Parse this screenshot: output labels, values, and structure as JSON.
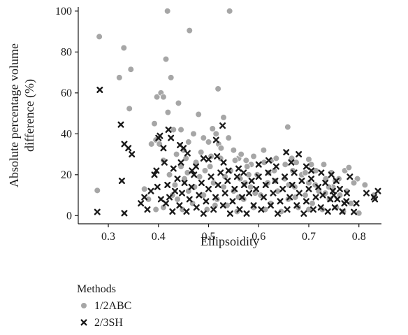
{
  "chart_data": {
    "type": "scatter",
    "xlabel": "Ellipsoidity",
    "ylabel": "Absolute percentage volume difference (%)",
    "ylabel_lines": [
      "Absolute percentage volume",
      "difference (%)"
    ],
    "xlim": [
      0.24,
      0.845
    ],
    "ylim": [
      -4,
      102
    ],
    "x_ticks": [
      0.3,
      0.4,
      0.5,
      0.6,
      0.7,
      0.8
    ],
    "x_tick_labels": [
      "0.3",
      "0.4",
      "0.5",
      "0.6",
      "0.7",
      "0.8"
    ],
    "y_ticks": [
      0,
      20,
      40,
      60,
      80,
      100
    ],
    "y_tick_labels": [
      "0",
      "20",
      "40",
      "60",
      "80",
      "100"
    ],
    "grid": false,
    "legend": {
      "title": "Methods",
      "placement": "bottom-left, below plot",
      "entries": [
        "1/2ABC",
        "2/3SH"
      ]
    },
    "series": [
      {
        "name": "1/2ABC",
        "marker": "circle",
        "color": "#a6a6a6",
        "points": [
          [
            0.282,
            87.5
          ],
          [
            0.331,
            82
          ],
          [
            0.345,
            71.5
          ],
          [
            0.322,
            67.5
          ],
          [
            0.342,
            52.3
          ],
          [
            0.278,
            12.3
          ],
          [
            0.372,
            13
          ],
          [
            0.386,
            35
          ],
          [
            0.395,
            37
          ],
          [
            0.402,
            35
          ],
          [
            0.392,
            45
          ],
          [
            0.397,
            58
          ],
          [
            0.405,
            60
          ],
          [
            0.41,
            58
          ],
          [
            0.415,
            76.5
          ],
          [
            0.418,
            100
          ],
          [
            0.419,
            50.5
          ],
          [
            0.425,
            67.5
          ],
          [
            0.43,
            42
          ],
          [
            0.44,
            55
          ],
          [
            0.462,
            90.5
          ],
          [
            0.445,
            42
          ],
          [
            0.45,
            32
          ],
          [
            0.455,
            28
          ],
          [
            0.46,
            36
          ],
          [
            0.47,
            40
          ],
          [
            0.48,
            49.5
          ],
          [
            0.49,
            38
          ],
          [
            0.5,
            36
          ],
          [
            0.508,
            42.5
          ],
          [
            0.515,
            40
          ],
          [
            0.52,
            35
          ],
          [
            0.519,
            62
          ],
          [
            0.53,
            48
          ],
          [
            0.542,
            100
          ],
          [
            0.54,
            38
          ],
          [
            0.55,
            32
          ],
          [
            0.56,
            28
          ],
          [
            0.575,
            27
          ],
          [
            0.585,
            25
          ],
          [
            0.61,
            32
          ],
          [
            0.625,
            27
          ],
          [
            0.658,
            43.3
          ],
          [
            0.668,
            22
          ],
          [
            0.7,
            27.5
          ],
          [
            0.705,
            25
          ],
          [
            0.73,
            25
          ],
          [
            0.745,
            21
          ],
          [
            0.76,
            18
          ],
          [
            0.772,
            22
          ],
          [
            0.78,
            23.5
          ],
          [
            0.8,
            1.2
          ],
          [
            0.812,
            15
          ],
          [
            0.83,
            10
          ],
          [
            0.797,
            18
          ],
          [
            0.41,
            27
          ],
          [
            0.422,
            20
          ],
          [
            0.433,
            15
          ],
          [
            0.438,
            8
          ],
          [
            0.41,
            4
          ],
          [
            0.395,
            3
          ],
          [
            0.38,
            8
          ],
          [
            0.445,
            24
          ],
          [
            0.452,
            18
          ],
          [
            0.46,
            12
          ],
          [
            0.468,
            6
          ],
          [
            0.475,
            26
          ],
          [
            0.482,
            19
          ],
          [
            0.49,
            10
          ],
          [
            0.497,
            3
          ],
          [
            0.503,
            24
          ],
          [
            0.51,
            16
          ],
          [
            0.517,
            8
          ],
          [
            0.524,
            28
          ],
          [
            0.53,
            14
          ],
          [
            0.537,
            5
          ],
          [
            0.544,
            22
          ],
          [
            0.55,
            12
          ],
          [
            0.557,
            2
          ],
          [
            0.563,
            18
          ],
          [
            0.57,
            8
          ],
          [
            0.577,
            24
          ],
          [
            0.584,
            14
          ],
          [
            0.59,
            4
          ],
          [
            0.597,
            20
          ],
          [
            0.604,
            10
          ],
          [
            0.611,
            26
          ],
          [
            0.618,
            16
          ],
          [
            0.624,
            6
          ],
          [
            0.631,
            22
          ],
          [
            0.638,
            12
          ],
          [
            0.645,
            2
          ],
          [
            0.652,
            18
          ],
          [
            0.659,
            8
          ],
          [
            0.666,
            28
          ],
          [
            0.672,
            14
          ],
          [
            0.679,
            4
          ],
          [
            0.686,
            20
          ],
          [
            0.693,
            10
          ],
          [
            0.7,
            16
          ],
          [
            0.707,
            6
          ],
          [
            0.714,
            22
          ],
          [
            0.72,
            12
          ],
          [
            0.727,
            3
          ],
          [
            0.734,
            18
          ],
          [
            0.741,
            8
          ],
          [
            0.748,
            14
          ],
          [
            0.755,
            4
          ],
          [
            0.762,
            10
          ],
          [
            0.769,
            2
          ],
          [
            0.776,
            12
          ],
          [
            0.784,
            6
          ],
          [
            0.79,
            16
          ],
          [
            0.485,
            31
          ],
          [
            0.505,
            29
          ],
          [
            0.525,
            33
          ],
          [
            0.565,
            30
          ],
          [
            0.59,
            29
          ],
          [
            0.635,
            28
          ],
          [
            0.675,
            26
          ],
          [
            0.458,
            21
          ],
          [
            0.472,
            14
          ],
          [
            0.493,
            22
          ],
          [
            0.513,
            5
          ],
          [
            0.533,
            19
          ],
          [
            0.553,
            27
          ],
          [
            0.573,
            16
          ],
          [
            0.593,
            11
          ],
          [
            0.613,
            3
          ],
          [
            0.633,
            17
          ],
          [
            0.653,
            25
          ],
          [
            0.673,
            9
          ],
          [
            0.693,
            21
          ],
          [
            0.713,
            15
          ],
          [
            0.733,
            11
          ],
          [
            0.753,
            17
          ],
          [
            0.428,
            10
          ],
          [
            0.436,
            30
          ],
          [
            0.448,
            3
          ],
          [
            0.58,
            20
          ],
          [
            0.62,
            21
          ],
          [
            0.66,
            15
          ],
          [
            0.7,
            3
          ],
          [
            0.74,
            14
          ],
          [
            0.56,
            9
          ]
        ]
      },
      {
        "name": "2/3SH",
        "marker": "x",
        "color": "#1a1a1a",
        "points": [
          [
            0.283,
            61.5
          ],
          [
            0.325,
            44.5
          ],
          [
            0.332,
            35
          ],
          [
            0.34,
            33
          ],
          [
            0.347,
            30
          ],
          [
            0.327,
            17
          ],
          [
            0.278,
            1.8
          ],
          [
            0.332,
            1.2
          ],
          [
            0.365,
            6
          ],
          [
            0.372,
            9
          ],
          [
            0.378,
            3
          ],
          [
            0.385,
            12
          ],
          [
            0.392,
            20
          ],
          [
            0.396,
            22
          ],
          [
            0.4,
            38
          ],
          [
            0.403,
            39
          ],
          [
            0.41,
            33
          ],
          [
            0.42,
            42
          ],
          [
            0.425,
            38
          ],
          [
            0.43,
            23
          ],
          [
            0.443,
            34.5
          ],
          [
            0.45,
            33
          ],
          [
            0.458,
            30.5
          ],
          [
            0.467,
            22
          ],
          [
            0.475,
            24
          ],
          [
            0.5,
            27.5
          ],
          [
            0.515,
            37
          ],
          [
            0.517,
            29
          ],
          [
            0.528,
            44
          ],
          [
            0.54,
            22
          ],
          [
            0.57,
            21
          ],
          [
            0.62,
            27
          ],
          [
            0.655,
            31
          ],
          [
            0.68,
            30
          ],
          [
            0.705,
            22
          ],
          [
            0.745,
            20
          ],
          [
            0.75,
            10
          ],
          [
            0.775,
            7
          ],
          [
            0.782,
            19
          ],
          [
            0.79,
            1.8
          ],
          [
            0.795,
            6
          ],
          [
            0.815,
            11
          ],
          [
            0.83,
            9
          ],
          [
            0.838,
            12
          ],
          [
            0.832,
            8
          ],
          [
            0.415,
            6
          ],
          [
            0.418,
            15
          ],
          [
            0.422,
            9
          ],
          [
            0.428,
            2
          ],
          [
            0.433,
            12
          ],
          [
            0.438,
            18
          ],
          [
            0.442,
            5
          ],
          [
            0.447,
            11
          ],
          [
            0.452,
            16
          ],
          [
            0.456,
            2
          ],
          [
            0.462,
            8
          ],
          [
            0.466,
            14
          ],
          [
            0.471,
            20
          ],
          [
            0.476,
            4
          ],
          [
            0.481,
            10
          ],
          [
            0.486,
            16
          ],
          [
            0.49,
            1
          ],
          [
            0.495,
            7
          ],
          [
            0.5,
            13
          ],
          [
            0.505,
            19
          ],
          [
            0.51,
            3
          ],
          [
            0.514,
            9
          ],
          [
            0.519,
            15
          ],
          [
            0.524,
            21
          ],
          [
            0.529,
            5
          ],
          [
            0.533,
            11
          ],
          [
            0.538,
            17
          ],
          [
            0.543,
            1
          ],
          [
            0.548,
            7
          ],
          [
            0.552,
            13
          ],
          [
            0.557,
            19
          ],
          [
            0.562,
            3
          ],
          [
            0.567,
            9
          ],
          [
            0.571,
            15
          ],
          [
            0.576,
            1
          ],
          [
            0.581,
            11
          ],
          [
            0.586,
            17
          ],
          [
            0.59,
            5
          ],
          [
            0.595,
            13
          ],
          [
            0.6,
            19
          ],
          [
            0.605,
            3
          ],
          [
            0.61,
            9
          ],
          [
            0.614,
            15
          ],
          [
            0.619,
            21
          ],
          [
            0.624,
            5
          ],
          [
            0.629,
            11
          ],
          [
            0.633,
            17
          ],
          [
            0.638,
            1
          ],
          [
            0.643,
            7
          ],
          [
            0.648,
            13
          ],
          [
            0.652,
            19
          ],
          [
            0.657,
            3
          ],
          [
            0.662,
            9
          ],
          [
            0.667,
            15
          ],
          [
            0.671,
            21
          ],
          [
            0.676,
            5
          ],
          [
            0.681,
            11
          ],
          [
            0.686,
            17
          ],
          [
            0.69,
            1
          ],
          [
            0.695,
            7
          ],
          [
            0.7,
            13
          ],
          [
            0.705,
            18
          ],
          [
            0.709,
            3
          ],
          [
            0.714,
            9
          ],
          [
            0.719,
            14
          ],
          [
            0.724,
            4
          ],
          [
            0.728,
            10
          ],
          [
            0.733,
            16
          ],
          [
            0.738,
            2
          ],
          [
            0.743,
            8
          ],
          [
            0.748,
            12
          ],
          [
            0.752,
            4
          ],
          [
            0.757,
            8
          ],
          [
            0.762,
            13
          ],
          [
            0.767,
            2
          ],
          [
            0.771,
            6
          ],
          [
            0.776,
            11
          ],
          [
            0.445,
            26
          ],
          [
            0.49,
            28
          ],
          [
            0.53,
            26
          ],
          [
            0.56,
            23
          ],
          [
            0.6,
            25
          ],
          [
            0.635,
            24
          ],
          [
            0.665,
            26
          ],
          [
            0.695,
            24
          ],
          [
            0.725,
            21
          ],
          [
            0.755,
            17
          ],
          [
            0.398,
            14
          ],
          [
            0.405,
            8
          ],
          [
            0.412,
            26
          ]
        ]
      }
    ]
  }
}
